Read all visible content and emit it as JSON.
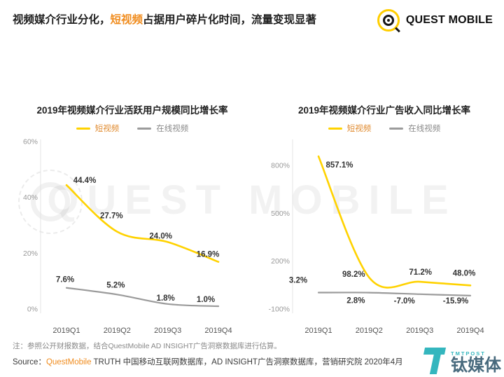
{
  "header": {
    "title_pre": "视频媒介行业分化，",
    "title_highlight": "短视频",
    "title_post": "占据用户碎片化时间，流量变现显著",
    "logo_text": "QUEST MOBILE"
  },
  "watermark": {
    "text": "QUEST MOBILE",
    "tmt_name": "钛媒体",
    "tmt_sub": "TMTPOST"
  },
  "footer": {
    "note": "注：参照公开财报数据，结合QuestMobile AD INSIGHT广告洞察数据库进行估算。",
    "source_label": "Source：",
    "source_brand": "QuestMobile",
    "source_rest": " TRUTH 中国移动互联网数据库，AD INSIGHT广告洞察数据库，营销研究院 2020年4月"
  },
  "colors": {
    "short_video_line": "#FFD200",
    "online_video_line": "#9B9B9B",
    "title_highlight": "#F08C1E",
    "tmt_teal": "#1FAFB8"
  },
  "chart_data": [
    {
      "type": "line",
      "title": "2019年视频媒介行业活跃用户规模同比增长率",
      "categories": [
        "2019Q1",
        "2019Q2",
        "2019Q3",
        "2019Q4"
      ],
      "ylim": [
        0,
        60
      ],
      "yticks": [
        0,
        20,
        40,
        60
      ],
      "ytick_labels": [
        "0%",
        "20%",
        "40%",
        "60%"
      ],
      "grid": false,
      "legend_position": "top",
      "series": [
        {
          "name": "短视频",
          "color": "#FFD200",
          "width": 2.6,
          "values": [
            44.4,
            27.7,
            24.0,
            16.9
          ],
          "labels": [
            "44.4%",
            "27.7%",
            "24.0%",
            "16.9%"
          ],
          "label_offsets": [
            [
              26,
              -3
            ],
            [
              -8,
              -19
            ],
            [
              -10,
              -5
            ],
            [
              -15,
              -7
            ]
          ]
        },
        {
          "name": "在线视频",
          "color": "#9B9B9B",
          "width": 2.2,
          "values": [
            7.6,
            5.2,
            1.8,
            1.0
          ],
          "labels": [
            "7.6%",
            "5.2%",
            "1.8%",
            "1.0%"
          ],
          "label_offsets": [
            [
              -2,
              -8
            ],
            [
              -2,
              -10
            ],
            [
              -3,
              -5
            ],
            [
              -18,
              -6
            ]
          ]
        }
      ]
    },
    {
      "type": "line",
      "title": "2019年视频媒介行业广告收入同比增长率",
      "categories": [
        "2019Q1",
        "2019Q2",
        "2019Q3",
        "2019Q4"
      ],
      "ylim": [
        -100,
        950
      ],
      "yticks": [
        -100,
        200,
        500,
        800
      ],
      "ytick_labels": [
        "-100%",
        "200%",
        "500%",
        "800%"
      ],
      "grid": false,
      "legend_position": "top",
      "series": [
        {
          "name": "短视频",
          "color": "#FFD200",
          "width": 2.6,
          "values": [
            857.1,
            98.2,
            71.2,
            48.0
          ],
          "labels": [
            "857.1%",
            "98.2%",
            "71.2%",
            "48.0%"
          ],
          "label_offsets": [
            [
              30,
              16
            ],
            [
              -22,
              -1
            ],
            [
              1,
              -10
            ],
            [
              -9,
              -14
            ]
          ]
        },
        {
          "name": "在线视频",
          "color": "#9B9B9B",
          "width": 2.2,
          "values": [
            3.2,
            2.8,
            -7.0,
            -15.9
          ],
          "labels": [
            "3.2%",
            "2.8%",
            "-7.0%",
            "-15.9%"
          ],
          "label_offsets": [
            [
              -29,
              -14
            ],
            [
              -19,
              15
            ],
            [
              -22,
              13
            ],
            [
              -21,
              11
            ]
          ]
        }
      ]
    }
  ]
}
